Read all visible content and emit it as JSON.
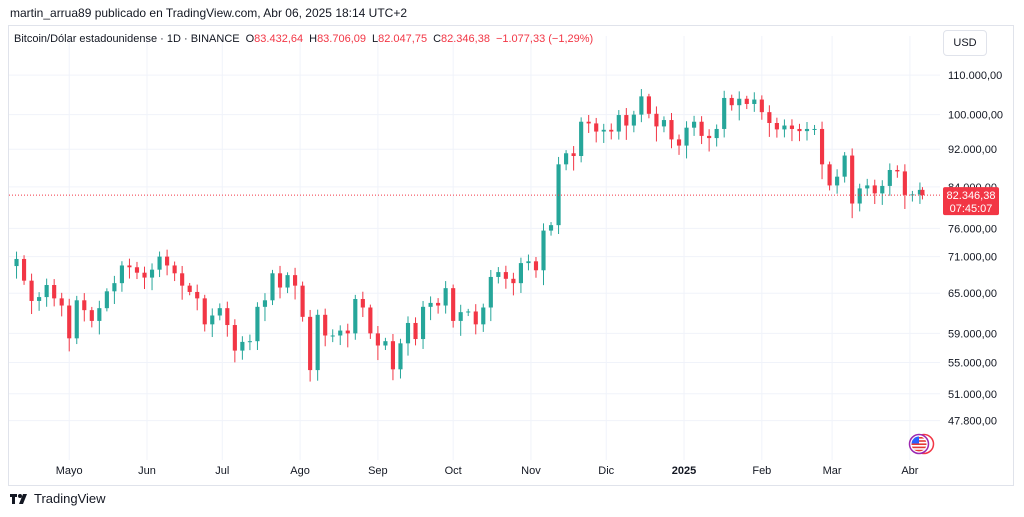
{
  "header": {
    "attribution": "martin_arrua89 publicado en TradingView.com, Abr 06, 2025 18:14 UTC+2"
  },
  "legend": {
    "symbol": "Bitcoin/Dólar estadounidense · 1D · BINANCE",
    "o_label": "O",
    "o_value": "83.432,64",
    "h_label": "H",
    "h_value": "83.706,09",
    "l_label": "L",
    "l_value": "82.047,75",
    "c_label": "C",
    "c_value": "82.346,38",
    "change": "−1.077,33 (−1,29%)"
  },
  "currency_button": "USD",
  "price_badge": {
    "price": "82.346,38",
    "countdown": "07:45:07"
  },
  "brand": {
    "name": "TradingView"
  },
  "colors": {
    "up": "#26a69a",
    "down": "#f23645",
    "grid": "#f0f3fa",
    "text": "#131722"
  },
  "chart_data": {
    "type": "candlestick",
    "y_scale": "log",
    "ylim": [
      44000,
      118000
    ],
    "y_ticks": [
      110000,
      100000,
      92000,
      84000,
      76000,
      71000,
      65000,
      59000,
      55000,
      51000,
      47800
    ],
    "y_tick_labels": [
      "110.000,00",
      "100.000,00",
      "92.000,00",
      "84.000,00",
      "76.000,00",
      "71.000,00",
      "65.000,00",
      "59.000,00",
      "55.000,00",
      "51.000,00",
      "47.800,00"
    ],
    "x_range": [
      "2024-04-07",
      "2025-04-13"
    ],
    "x_ticks": [
      "2024-05-01",
      "2024-06-01",
      "2024-07-01",
      "2024-08-01",
      "2024-09-01",
      "2024-10-01",
      "2024-11-01",
      "2024-12-01",
      "2025-01-01",
      "2025-02-01",
      "2025-03-01",
      "2025-04-01"
    ],
    "x_tick_labels": [
      "Mayo",
      "Jun",
      "Jul",
      "Ago",
      "Sep",
      "Oct",
      "Nov",
      "Dic",
      "2025",
      "Feb",
      "Mar",
      "Abr"
    ],
    "current_price": 82346.38,
    "grid": true,
    "closes": [
      [
        "2024-04-07",
        69400
      ],
      [
        "2024-04-10",
        70600
      ],
      [
        "2024-04-13",
        67000
      ],
      [
        "2024-04-16",
        63800
      ],
      [
        "2024-04-19",
        64400
      ],
      [
        "2024-04-22",
        66300
      ],
      [
        "2024-04-25",
        64200
      ],
      [
        "2024-04-28",
        63100
      ],
      [
        "2024-05-01",
        58300
      ],
      [
        "2024-05-04",
        63900
      ],
      [
        "2024-05-07",
        62400
      ],
      [
        "2024-05-10",
        60800
      ],
      [
        "2024-05-13",
        62700
      ],
      [
        "2024-05-16",
        65300
      ],
      [
        "2024-05-19",
        66600
      ],
      [
        "2024-05-22",
        69500
      ],
      [
        "2024-05-25",
        69200
      ],
      [
        "2024-05-28",
        68300
      ],
      [
        "2024-05-31",
        67500
      ],
      [
        "2024-06-03",
        68800
      ],
      [
        "2024-06-06",
        71000
      ],
      [
        "2024-06-09",
        69500
      ],
      [
        "2024-06-12",
        68200
      ],
      [
        "2024-06-15",
        66200
      ],
      [
        "2024-06-18",
        65200
      ],
      [
        "2024-06-21",
        64200
      ],
      [
        "2024-06-24",
        60300
      ],
      [
        "2024-06-27",
        61600
      ],
      [
        "2024-06-30",
        62700
      ],
      [
        "2024-07-03",
        60200
      ],
      [
        "2024-07-06",
        56600
      ],
      [
        "2024-07-09",
        57800
      ],
      [
        "2024-07-12",
        57900
      ],
      [
        "2024-07-15",
        62900
      ],
      [
        "2024-07-18",
        63900
      ],
      [
        "2024-07-21",
        68200
      ],
      [
        "2024-07-24",
        65900
      ],
      [
        "2024-07-27",
        67900
      ],
      [
        "2024-07-30",
        66200
      ],
      [
        "2024-08-02",
        61400
      ],
      [
        "2024-08-05",
        54000
      ],
      [
        "2024-08-08",
        61700
      ],
      [
        "2024-08-11",
        58700
      ],
      [
        "2024-08-14",
        58700
      ],
      [
        "2024-08-17",
        59400
      ],
      [
        "2024-08-20",
        59000
      ],
      [
        "2024-08-23",
        64100
      ],
      [
        "2024-08-26",
        62800
      ],
      [
        "2024-08-29",
        59000
      ],
      [
        "2024-09-01",
        57300
      ],
      [
        "2024-09-04",
        57900
      ],
      [
        "2024-09-07",
        54100
      ],
      [
        "2024-09-10",
        57600
      ],
      [
        "2024-09-13",
        60500
      ],
      [
        "2024-09-16",
        58200
      ],
      [
        "2024-09-19",
        62900
      ],
      [
        "2024-09-22",
        63500
      ],
      [
        "2024-09-25",
        63100
      ],
      [
        "2024-09-28",
        65800
      ],
      [
        "2024-10-01",
        60800
      ],
      [
        "2024-10-04",
        62100
      ],
      [
        "2024-10-07",
        62200
      ],
      [
        "2024-10-10",
        60300
      ],
      [
        "2024-10-13",
        62800
      ],
      [
        "2024-10-16",
        67600
      ],
      [
        "2024-10-19",
        68400
      ],
      [
        "2024-10-22",
        67300
      ],
      [
        "2024-10-25",
        66600
      ],
      [
        "2024-10-28",
        69900
      ],
      [
        "2024-10-31",
        70200
      ],
      [
        "2024-11-03",
        68700
      ],
      [
        "2024-11-06",
        75600
      ],
      [
        "2024-11-09",
        76600
      ],
      [
        "2024-11-12",
        88700
      ],
      [
        "2024-11-15",
        91100
      ],
      [
        "2024-11-18",
        90500
      ],
      [
        "2024-11-21",
        98300
      ],
      [
        "2024-11-24",
        97900
      ],
      [
        "2024-11-27",
        96000
      ],
      [
        "2024-11-30",
        96400
      ],
      [
        "2024-12-03",
        96000
      ],
      [
        "2024-12-06",
        99900
      ],
      [
        "2024-12-09",
        97400
      ],
      [
        "2024-12-12",
        100000
      ],
      [
        "2024-12-15",
        104500
      ],
      [
        "2024-12-18",
        100200
      ],
      [
        "2024-12-21",
        97200
      ],
      [
        "2024-12-24",
        98700
      ],
      [
        "2024-12-27",
        94200
      ],
      [
        "2024-12-30",
        92800
      ],
      [
        "2025-01-02",
        96900
      ],
      [
        "2025-01-05",
        98300
      ],
      [
        "2025-01-08",
        95000
      ],
      [
        "2025-01-11",
        94500
      ],
      [
        "2025-01-14",
        96600
      ],
      [
        "2025-01-17",
        104100
      ],
      [
        "2025-01-20",
        102300
      ],
      [
        "2025-01-23",
        103900
      ],
      [
        "2025-01-26",
        102600
      ],
      [
        "2025-01-29",
        103700
      ],
      [
        "2025-02-01",
        100600
      ],
      [
        "2025-02-04",
        98000
      ],
      [
        "2025-02-07",
        96500
      ],
      [
        "2025-02-10",
        97400
      ],
      [
        "2025-02-13",
        96600
      ],
      [
        "2025-02-16",
        96100
      ],
      [
        "2025-02-19",
        96600
      ],
      [
        "2025-02-22",
        96600
      ],
      [
        "2025-02-25",
        88700
      ],
      [
        "2025-02-28",
        84300
      ],
      [
        "2025-03-03",
        86100
      ],
      [
        "2025-03-06",
        90600
      ],
      [
        "2025-03-09",
        80700
      ],
      [
        "2025-03-12",
        83700
      ],
      [
        "2025-03-15",
        84300
      ],
      [
        "2025-03-18",
        82700
      ],
      [
        "2025-03-21",
        84200
      ],
      [
        "2025-03-24",
        87500
      ],
      [
        "2025-03-27",
        87200
      ],
      [
        "2025-03-30",
        82400
      ],
      [
        "2025-04-02",
        82500
      ],
      [
        "2025-04-05",
        83400
      ],
      [
        "2025-04-06",
        82346.38
      ]
    ]
  }
}
